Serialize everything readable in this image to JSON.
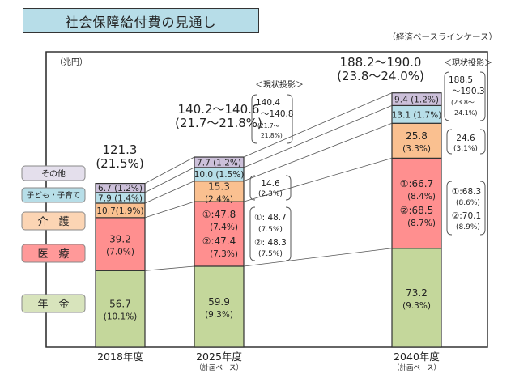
{
  "header": {
    "title": "社会保障給付費の見通し",
    "subtitle": "（経済ベースラインケース）"
  },
  "chart_data": {
    "type": "bar",
    "stacked": true,
    "title": "社会保障給付費の見通し",
    "unit_label": "（兆円）",
    "categories": [
      "2018年度",
      "2025年度",
      "2040年度"
    ],
    "category_notes": [
      "",
      "（計画ベース）",
      "（計画ベース）"
    ],
    "totals": [
      {
        "value": "121.3",
        "gdp": "(21.5%)"
      },
      {
        "value": "140.2〜140.6",
        "gdp": "(21.7〜21.8%)"
      },
      {
        "value": "188.2〜190.0",
        "gdp": "(23.8〜24.0%)"
      }
    ],
    "series": [
      {
        "name": "年金",
        "color": "#c4d79b",
        "values": [
          56.7,
          59.9,
          73.2
        ],
        "labels": [
          [
            "56.7",
            "(10.1%)"
          ],
          [
            "59.9",
            "(9.3%)"
          ],
          [
            "73.2",
            "(9.3%)"
          ]
        ]
      },
      {
        "name": "医療",
        "color": "#ff8f8f",
        "values": [
          39.2,
          47.8,
          66.7
        ],
        "labels": [
          [
            "39.2",
            "(7.0%)"
          ],
          [
            "①:47.8",
            "(7.4%)",
            "②:47.4",
            "(7.3%)"
          ],
          [
            "①:66.7",
            "(8.4%)",
            "②:68.5",
            "(8.7%)"
          ]
        ]
      },
      {
        "name": "介護",
        "color": "#fac090",
        "values": [
          10.7,
          15.3,
          25.8
        ],
        "labels": [
          [
            "10.7(1.9%)"
          ],
          [
            "15.3",
            "(2.4%)"
          ],
          [
            "25.8",
            "(3.3%)"
          ]
        ]
      },
      {
        "name": "子ども・子育て",
        "color": "#b7dee8",
        "values": [
          7.9,
          10.0,
          13.1
        ],
        "labels": [
          [
            "7.9 (1.4%)"
          ],
          [
            "10.0 (1.5%)"
          ],
          [
            "13.1 (1.7%)"
          ]
        ]
      },
      {
        "name": "その他",
        "color": "#ccc0da",
        "values": [
          6.7,
          7.7,
          9.4
        ],
        "labels": [
          [
            "6.7 (1.2%)"
          ],
          [
            "7.7 (1.2%)"
          ],
          [
            "9.4 (1.2%)"
          ]
        ]
      }
    ],
    "legend": [
      {
        "name": "その他",
        "color": "#e4dfec"
      },
      {
        "name": "子ども・子育て",
        "color": "#b7dee8"
      },
      {
        "name": "介　護",
        "color": "#fcd5b4"
      },
      {
        "name": "医　療",
        "color": "#ff9999"
      },
      {
        "name": "年　金",
        "color": "#d8e4bc"
      }
    ],
    "current_projection": {
      "heading": "＜現状投影＞",
      "y2025": {
        "total": [
          "140.4",
          "〜140.8",
          "(21.7〜",
          "21.8%)"
        ],
        "kaigo": [
          "14.6",
          "(2.3%)"
        ],
        "iryo": [
          "①: 48.7",
          "(7.5%)",
          "②: 48.3",
          "(7.5%)"
        ]
      },
      "y2040": {
        "total": [
          "188.5",
          "〜190.3",
          "(23.8〜",
          "24.1%)"
        ],
        "kaigo": [
          "24.6",
          "(3.1%)"
        ],
        "iryo": [
          "①:68.3",
          "(8.6%)",
          "②:70.1",
          "(8.9%)"
        ]
      }
    },
    "ylim": [
      0,
      200
    ],
    "grid": false,
    "legend_position": "left"
  }
}
